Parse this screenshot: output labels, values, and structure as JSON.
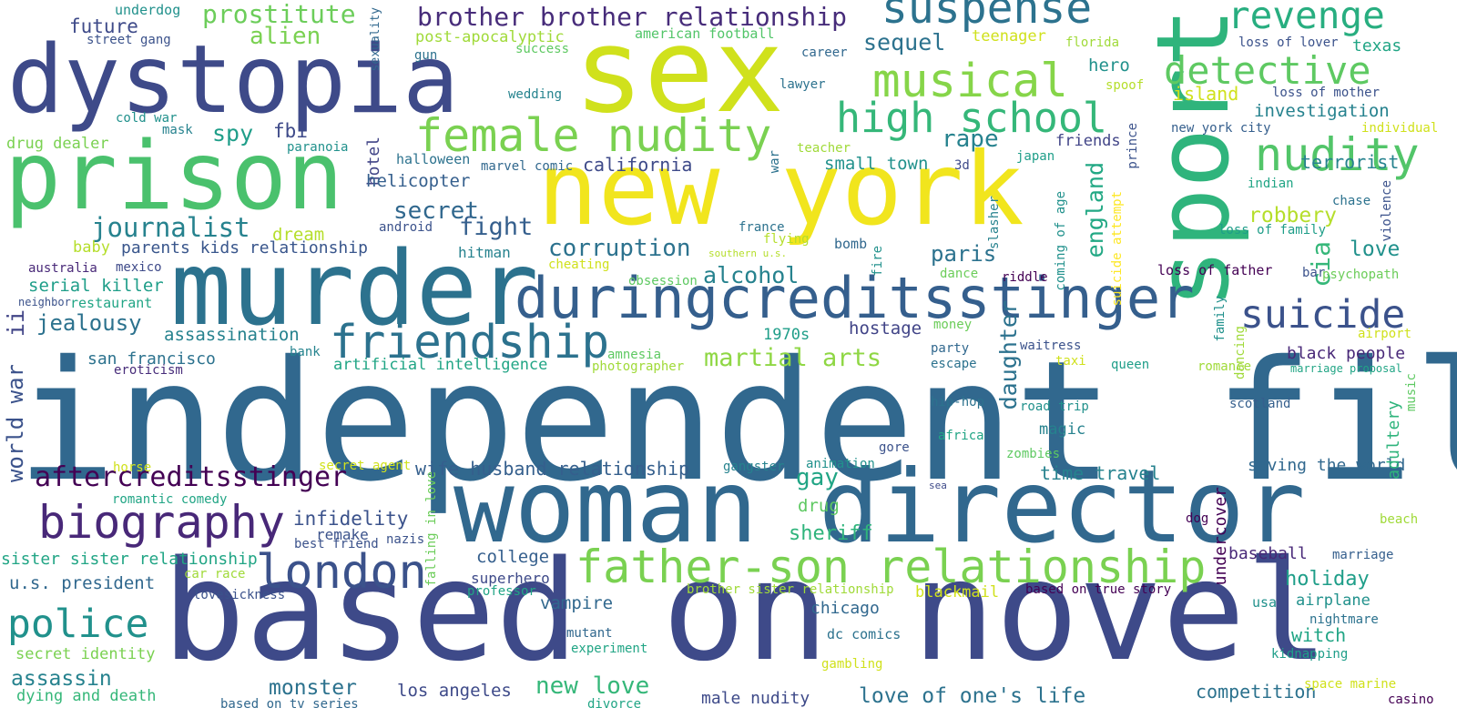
{
  "words": [
    {
      "text": "independent film",
      "color": "#31688e"
    },
    {
      "text": "based on novel",
      "color": "#3e4a89"
    },
    {
      "text": "woman director",
      "color": "#31688e"
    },
    {
      "text": "new york",
      "color": "#f1e51d"
    },
    {
      "text": "sex",
      "color": "#d0e11c"
    },
    {
      "text": "sport",
      "color": "#2fb47c"
    },
    {
      "text": "murder",
      "color": "#2c728e"
    },
    {
      "text": "prison",
      "color": "#4ac16d"
    },
    {
      "text": "dystopia",
      "color": "#3e4a89"
    },
    {
      "text": "duringcreditsstinger",
      "color": "#355f8d"
    },
    {
      "text": "father-son relationship",
      "color": "#7ad151"
    },
    {
      "text": "female nudity",
      "color": "#7ad151"
    },
    {
      "text": "friendship",
      "color": "#2c728e"
    },
    {
      "text": "biography",
      "color": "#482878"
    },
    {
      "text": "london",
      "color": "#3b528b"
    },
    {
      "text": "police",
      "color": "#21918c"
    },
    {
      "text": "suspense",
      "color": "#2c728e"
    },
    {
      "text": "musical",
      "color": "#86d549"
    },
    {
      "text": "high school",
      "color": "#35b779"
    },
    {
      "text": "nudity",
      "color": "#52c569"
    },
    {
      "text": "detective",
      "color": "#5ec962"
    },
    {
      "text": "revenge",
      "color": "#28ae80"
    },
    {
      "text": "suicide",
      "color": "#3b528b"
    },
    {
      "text": "aftercreditsstinger",
      "color": "#440154"
    },
    {
      "text": "journalist",
      "color": "#26828e"
    },
    {
      "text": "brother brother relationship",
      "color": "#472c7a"
    },
    {
      "text": "prostitute",
      "color": "#6ccd5a"
    },
    {
      "text": "alien",
      "color": "#7ad151"
    },
    {
      "text": "future",
      "color": "#3e4a89"
    },
    {
      "text": "underdog",
      "color": "#21918c"
    },
    {
      "text": "street gang",
      "color": "#3b528b"
    },
    {
      "text": "sexuality",
      "color": "#31688e"
    },
    {
      "text": "post-apocalyptic",
      "color": "#a0da39"
    },
    {
      "text": "gun",
      "color": "#2c728e"
    },
    {
      "text": "success",
      "color": "#5ec962"
    },
    {
      "text": "american football",
      "color": "#52c569"
    },
    {
      "text": "wedding",
      "color": "#25838e"
    },
    {
      "text": "cold war",
      "color": "#21918c"
    },
    {
      "text": "mask",
      "color": "#26828e"
    },
    {
      "text": "drug dealer",
      "color": "#7ad151"
    },
    {
      "text": "spy",
      "color": "#1f9e89"
    },
    {
      "text": "fbi",
      "color": "#3e4a89"
    },
    {
      "text": "hotel",
      "color": "#414487"
    },
    {
      "text": "paranoia",
      "color": "#21918c"
    },
    {
      "text": "halloween",
      "color": "#2c728e"
    },
    {
      "text": "marvel comic",
      "color": "#31688e"
    },
    {
      "text": "california",
      "color": "#3e4a89"
    },
    {
      "text": "secret",
      "color": "#31688e"
    },
    {
      "text": "helicopter",
      "color": "#355f8d"
    },
    {
      "text": "fight",
      "color": "#355f8d"
    },
    {
      "text": "corruption",
      "color": "#2c728e"
    },
    {
      "text": "dream",
      "color": "#b5de2b"
    },
    {
      "text": "baby",
      "color": "#b5de2b"
    },
    {
      "text": "parents kids relationship",
      "color": "#39568c"
    },
    {
      "text": "android",
      "color": "#3b528b"
    },
    {
      "text": "hitman",
      "color": "#26828e"
    },
    {
      "text": "australia",
      "color": "#482878"
    },
    {
      "text": "mexico",
      "color": "#3e4a89"
    },
    {
      "text": "serial killer",
      "color": "#1f9e89"
    },
    {
      "text": "neighbor",
      "color": "#3b528b"
    },
    {
      "text": "restaurant",
      "color": "#21a585"
    },
    {
      "text": "cheating",
      "color": "#d0e11c"
    },
    {
      "text": "alcohol",
      "color": "#26828e"
    },
    {
      "text": "jealousy",
      "color": "#2c728e"
    },
    {
      "text": "ii",
      "color": "#414487"
    },
    {
      "text": "assassination",
      "color": "#26828e"
    },
    {
      "text": "san francisco",
      "color": "#2c728e"
    },
    {
      "text": "eroticism",
      "color": "#472c7a"
    },
    {
      "text": "world war",
      "color": "#3b528b"
    },
    {
      "text": "artificial intelligence",
      "color": "#21a585"
    },
    {
      "text": "1970s",
      "color": "#1f9e89"
    },
    {
      "text": "martial arts",
      "color": "#8fd744"
    },
    {
      "text": "amnesia",
      "color": "#5ec962"
    },
    {
      "text": "photographer",
      "color": "#a0da39"
    },
    {
      "text": "bank",
      "color": "#25838e"
    },
    {
      "text": "sequel",
      "color": "#2c728e"
    },
    {
      "text": "hero",
      "color": "#21918c"
    },
    {
      "text": "rape",
      "color": "#26828e"
    },
    {
      "text": "small town",
      "color": "#21918c"
    },
    {
      "text": "friends",
      "color": "#414487"
    },
    {
      "text": "teenager",
      "color": "#d0e11c"
    },
    {
      "text": "florida",
      "color": "#a0da39"
    },
    {
      "text": "career",
      "color": "#31688e"
    },
    {
      "text": "lawyer",
      "color": "#2c728e"
    },
    {
      "text": "spoof",
      "color": "#b5de2b"
    },
    {
      "text": "island",
      "color": "#d0e11c"
    },
    {
      "text": "loss of lover",
      "color": "#3b528b"
    },
    {
      "text": "loss of mother",
      "color": "#3b528b"
    },
    {
      "text": "texas",
      "color": "#21a585"
    },
    {
      "text": "investigation",
      "color": "#26828e"
    },
    {
      "text": "new york city",
      "color": "#355f8d"
    },
    {
      "text": "individual",
      "color": "#d0e11c"
    },
    {
      "text": "teacher",
      "color": "#a0da39"
    },
    {
      "text": "japan",
      "color": "#1f9e89"
    },
    {
      "text": "3d",
      "color": "#3e4a89"
    },
    {
      "text": "war",
      "color": "#2c728e"
    },
    {
      "text": "slasher",
      "color": "#26828e"
    },
    {
      "text": "coming of age",
      "color": "#21918c"
    },
    {
      "text": "england",
      "color": "#22a884"
    },
    {
      "text": "suicide attempt",
      "color": "#fde725"
    },
    {
      "text": "prince",
      "color": "#3b528b"
    },
    {
      "text": "terrorist",
      "color": "#26828e"
    },
    {
      "text": "indian",
      "color": "#21a585"
    },
    {
      "text": "chase",
      "color": "#2c728e"
    },
    {
      "text": "violence",
      "color": "#3b528b"
    },
    {
      "text": "robbery",
      "color": "#b5de2b"
    },
    {
      "text": "cia",
      "color": "#35b779"
    },
    {
      "text": "love",
      "color": "#21918c"
    },
    {
      "text": "loss of family",
      "color": "#1f9e89"
    },
    {
      "text": "bar",
      "color": "#3b528b"
    },
    {
      "text": "loss of father",
      "color": "#440154"
    },
    {
      "text": "psychopath",
      "color": "#6ccd5a"
    },
    {
      "text": "france",
      "color": "#2c728e"
    },
    {
      "text": "flying",
      "color": "#b5de2b"
    },
    {
      "text": "southern u.s.",
      "color": "#b5de2b"
    },
    {
      "text": "bomb",
      "color": "#31688e"
    },
    {
      "text": "fire",
      "color": "#21918c"
    },
    {
      "text": "paris",
      "color": "#2c728e"
    },
    {
      "text": "dance",
      "color": "#6ccd5a"
    },
    {
      "text": "riddle",
      "color": "#440154"
    },
    {
      "text": "obsession",
      "color": "#5ec962"
    },
    {
      "text": "hostage",
      "color": "#414487"
    },
    {
      "text": "money",
      "color": "#6ccd5a"
    },
    {
      "text": "daughter",
      "color": "#2c728e"
    },
    {
      "text": "family",
      "color": "#21918c"
    },
    {
      "text": "party",
      "color": "#31688e"
    },
    {
      "text": "waitress",
      "color": "#3b528b"
    },
    {
      "text": "escape",
      "color": "#2c728e"
    },
    {
      "text": "taxi",
      "color": "#d0e11c"
    },
    {
      "text": "queen",
      "color": "#1f9e89"
    },
    {
      "text": "romance",
      "color": "#a0da39"
    },
    {
      "text": "dancing",
      "color": "#a0da39"
    },
    {
      "text": "black people",
      "color": "#482878"
    },
    {
      "text": "airport",
      "color": "#d0e11c"
    },
    {
      "text": "marriage proposal",
      "color": "#21a585"
    },
    {
      "text": "music",
      "color": "#5ec962"
    },
    {
      "text": "hip-hop",
      "color": "#2c728e"
    },
    {
      "text": "road trip",
      "color": "#21918c"
    },
    {
      "text": "scotland",
      "color": "#355f8d"
    },
    {
      "text": "magic",
      "color": "#26828e"
    },
    {
      "text": "africa",
      "color": "#21a585"
    },
    {
      "text": "gore",
      "color": "#3b528b"
    },
    {
      "text": "zombies",
      "color": "#5ec962"
    },
    {
      "text": "horse",
      "color": "#d0e11c"
    },
    {
      "text": "secret agent",
      "color": "#d0e11c"
    },
    {
      "text": "animation",
      "color": "#21918c"
    },
    {
      "text": "gangster",
      "color": "#26828e"
    },
    {
      "text": "wife husband relationship",
      "color": "#355f8d"
    },
    {
      "text": "time travel",
      "color": "#26828e"
    },
    {
      "text": "saving the world",
      "color": "#31688e"
    },
    {
      "text": "sea",
      "color": "#3e4a89"
    },
    {
      "text": "gay",
      "color": "#21a585"
    },
    {
      "text": "drug",
      "color": "#5ec962"
    },
    {
      "text": "infidelity",
      "color": "#3b528b"
    },
    {
      "text": "remake",
      "color": "#3b528b"
    },
    {
      "text": "best friend",
      "color": "#3b528b"
    },
    {
      "text": "nazis",
      "color": "#3b528b"
    },
    {
      "text": "falling in love",
      "color": "#6ccd5a"
    },
    {
      "text": "dog",
      "color": "#440154"
    },
    {
      "text": "undercover",
      "color": "#440154"
    },
    {
      "text": "adultery",
      "color": "#2fb47c"
    },
    {
      "text": "beach",
      "color": "#a0da39"
    },
    {
      "text": "romantic comedy",
      "color": "#21a585"
    },
    {
      "text": "sheriff",
      "color": "#2fb47c"
    },
    {
      "text": "sister sister relationship",
      "color": "#21a585"
    },
    {
      "text": "car race",
      "color": "#a0da39"
    },
    {
      "text": "college",
      "color": "#355f8d"
    },
    {
      "text": "superhero",
      "color": "#3e4a89"
    },
    {
      "text": "u.s. president",
      "color": "#31688e"
    },
    {
      "text": "lovesickness",
      "color": "#3b528b"
    },
    {
      "text": "professor",
      "color": "#21a585"
    },
    {
      "text": "brother sister relationship",
      "color": "#a0da39"
    },
    {
      "text": "blackmail",
      "color": "#d0e11c"
    },
    {
      "text": "based on true story",
      "color": "#440154"
    },
    {
      "text": "baseball",
      "color": "#482878"
    },
    {
      "text": "marriage",
      "color": "#355f8d"
    },
    {
      "text": "holiday",
      "color": "#1f9e89"
    },
    {
      "text": "airplane",
      "color": "#21918c"
    },
    {
      "text": "usa",
      "color": "#21918c"
    },
    {
      "text": "witch",
      "color": "#21a585"
    },
    {
      "text": "nightmare",
      "color": "#2c728e"
    },
    {
      "text": "kidnapping",
      "color": "#1f9e89"
    },
    {
      "text": "vampire",
      "color": "#31688e"
    },
    {
      "text": "chicago",
      "color": "#31688e"
    },
    {
      "text": "dc comics",
      "color": "#2c728e"
    },
    {
      "text": "mutant",
      "color": "#31688e"
    },
    {
      "text": "experiment",
      "color": "#21a585"
    },
    {
      "text": "gambling",
      "color": "#d0e11c"
    },
    {
      "text": "secret identity",
      "color": "#7ad151"
    },
    {
      "text": "assassin",
      "color": "#26828e"
    },
    {
      "text": "monster",
      "color": "#2c728e"
    },
    {
      "text": "dying and death",
      "color": "#35b779"
    },
    {
      "text": "los angeles",
      "color": "#3e4a89"
    },
    {
      "text": "new love",
      "color": "#35b779"
    },
    {
      "text": "male nudity",
      "color": "#3e4a89"
    },
    {
      "text": "love of one's life",
      "color": "#2c728e"
    },
    {
      "text": "competition",
      "color": "#2c728e"
    },
    {
      "text": "space marine",
      "color": "#d0e11c"
    },
    {
      "text": "casino",
      "color": "#440154"
    },
    {
      "text": "based on tv series",
      "color": "#31688e"
    },
    {
      "text": "divorce",
      "color": "#21a585"
    }
  ]
}
